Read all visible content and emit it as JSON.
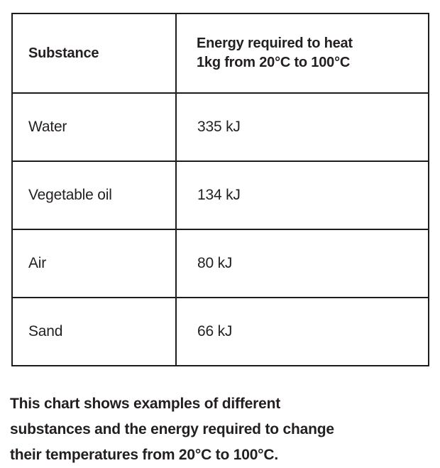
{
  "table": {
    "header": {
      "substance": "Substance",
      "energy_line1": "Energy required to heat",
      "energy_line2": "1kg from 20°C to 100°C"
    },
    "rows": [
      {
        "substance": "Water",
        "energy": "335 kJ"
      },
      {
        "substance": "Vegetable oil",
        "energy": "134 kJ"
      },
      {
        "substance": "Air",
        "energy": "80 kJ"
      },
      {
        "substance": "Sand",
        "energy": "66 kJ"
      }
    ]
  },
  "caption": {
    "lines": [
      "This chart shows examples of different",
      "substances and the energy required to change",
      "their temperatures from 20°C to 100°C."
    ],
    "text": "This chart shows examples of different substances and the energy required to change their temperatures from 20°C to 100°C."
  },
  "chart_data": {
    "type": "table",
    "columns": [
      "Substance",
      "Energy required to heat 1kg from 20°C to 100°C"
    ],
    "categories": [
      "Water",
      "Vegetable oil",
      "Air",
      "Sand"
    ],
    "series": [
      {
        "name": "Energy required to heat 1kg from 20°C to 100°C (kJ)",
        "values": [
          335,
          134,
          80,
          66
        ]
      }
    ],
    "rows": [
      [
        "Water",
        "335 kJ"
      ],
      [
        "Vegetable oil",
        "134 kJ"
      ],
      [
        "Air",
        "80 kJ"
      ],
      [
        "Sand",
        "66 kJ"
      ]
    ],
    "title": "",
    "caption": "This chart shows examples of different substances and the energy required to change their temperatures from 20°C to 100°C."
  },
  "colors": {
    "text": "#231f20",
    "border": "#1d1d1b",
    "background": "#ffffff"
  }
}
